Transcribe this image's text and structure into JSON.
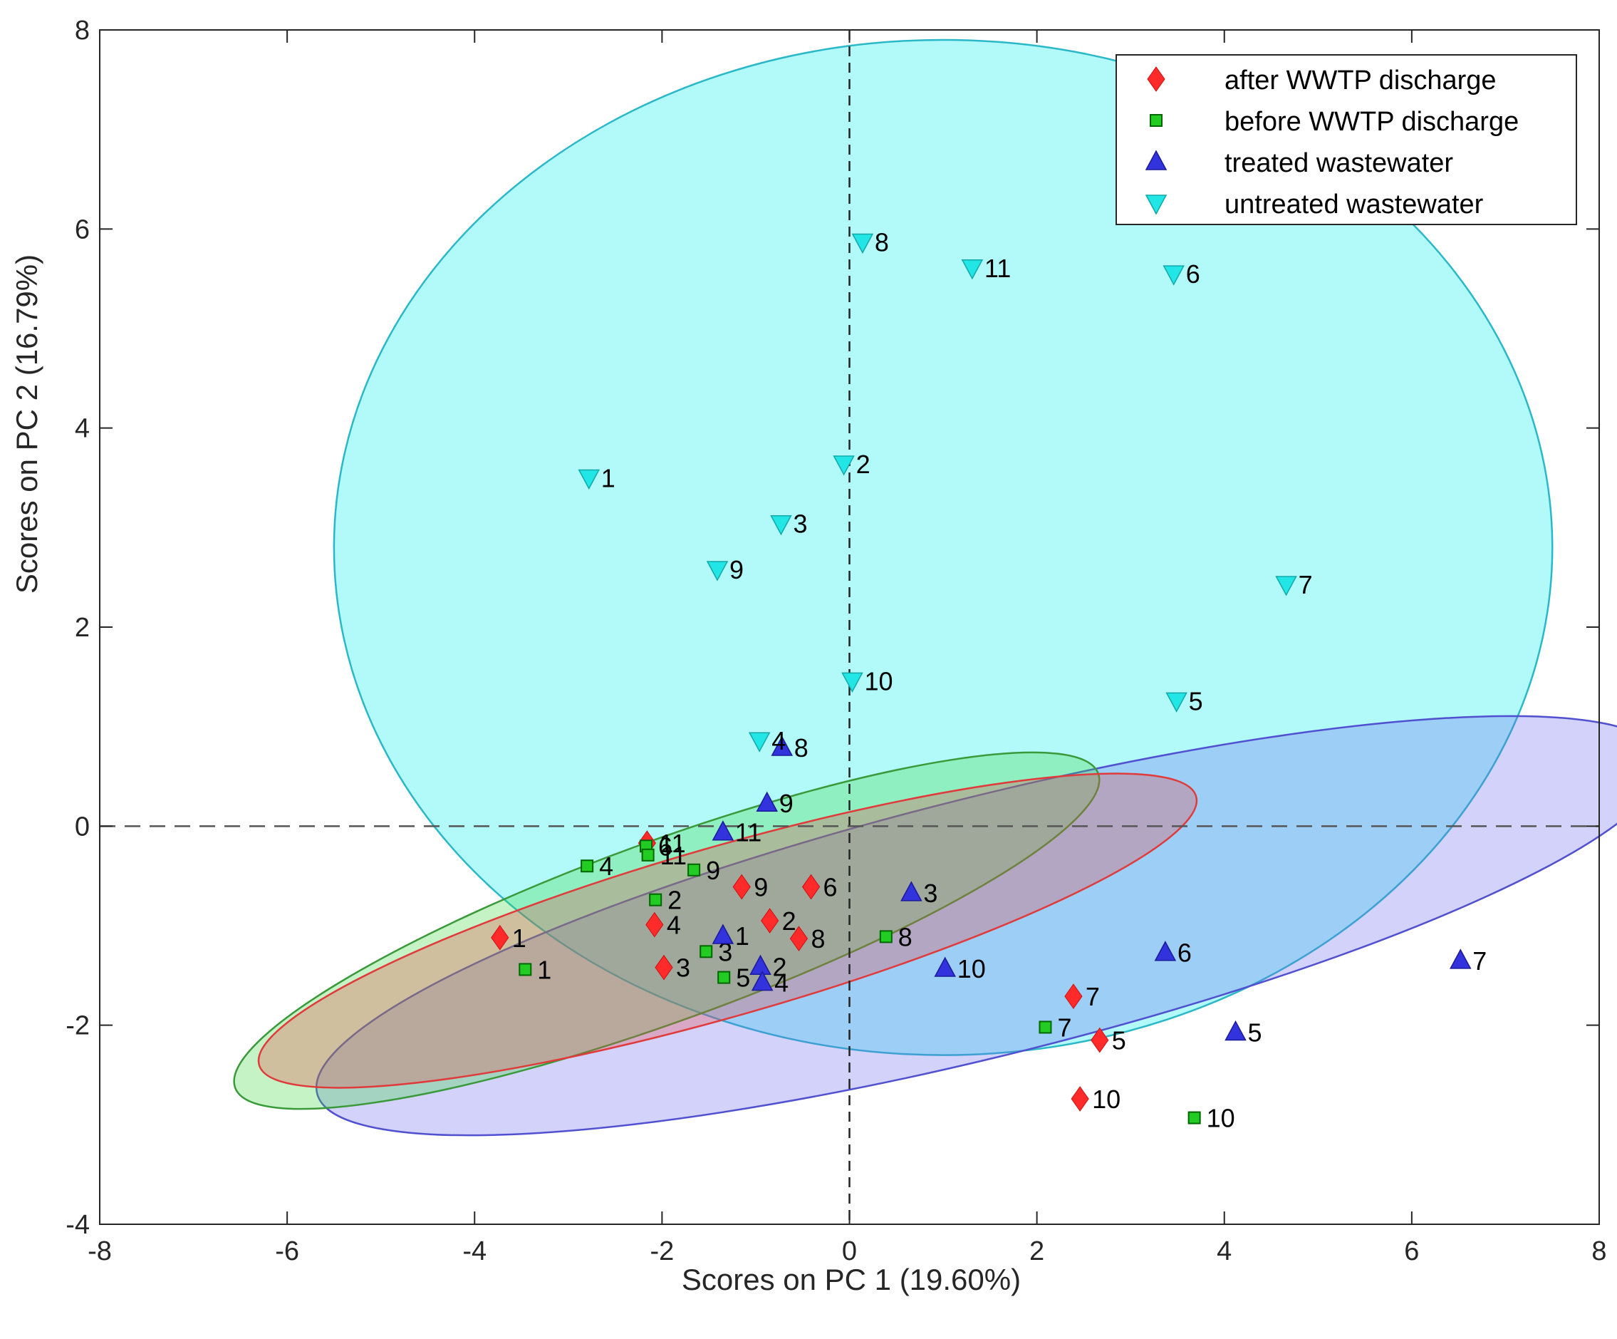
{
  "chart_data": {
    "type": "scatter",
    "title": "",
    "xlabel": "Scores on PC 1 (19.60%)",
    "ylabel": "Scores on PC 2 (16.79%)",
    "xlim": [
      -8,
      8
    ],
    "ylim": [
      -4,
      8
    ],
    "xticks": [
      "-8",
      "-6",
      "-4",
      "-2",
      "0",
      "2",
      "4",
      "6",
      "8"
    ],
    "yticks": [
      "-4",
      "-2",
      "0",
      "2",
      "4",
      "6",
      "8"
    ],
    "reference_lines": {
      "x": 0,
      "y": 0
    },
    "legend_position": "top-right",
    "series": [
      {
        "name": "after WWTP discharge",
        "marker": "diamond",
        "color": "#ff2a2a",
        "points": [
          {
            "label": "1",
            "x": -3.73,
            "y": -1.12
          },
          {
            "label": "2",
            "x": -0.85,
            "y": -0.95
          },
          {
            "label": "3",
            "x": -1.98,
            "y": -1.42
          },
          {
            "label": "4",
            "x": -2.08,
            "y": -0.99
          },
          {
            "label": "5",
            "x": 2.67,
            "y": -2.15
          },
          {
            "label": "6",
            "x": -0.41,
            "y": -0.61
          },
          {
            "label": "7",
            "x": 2.39,
            "y": -1.71
          },
          {
            "label": "8",
            "x": -0.54,
            "y": -1.13
          },
          {
            "label": "9",
            "x": -1.15,
            "y": -0.61
          },
          {
            "label": "10",
            "x": 2.46,
            "y": -2.74
          },
          {
            "label": "11",
            "x": -2.16,
            "y": -0.17
          }
        ]
      },
      {
        "name": "before WWTP discharge",
        "marker": "square",
        "color": "#22cc22",
        "points": [
          {
            "label": "1",
            "x": -3.46,
            "y": -1.44
          },
          {
            "label": "2",
            "x": -2.07,
            "y": -0.74
          },
          {
            "label": "3",
            "x": -1.53,
            "y": -1.26
          },
          {
            "label": "4",
            "x": -2.8,
            "y": -0.4
          },
          {
            "label": "5",
            "x": -1.34,
            "y": -1.52
          },
          {
            "label": "6",
            "x": -2.17,
            "y": -0.2
          },
          {
            "label": "7",
            "x": 2.09,
            "y": -2.02
          },
          {
            "label": "8",
            "x": 0.39,
            "y": -1.11
          },
          {
            "label": "9",
            "x": -1.66,
            "y": -0.44
          },
          {
            "label": "10",
            "x": 3.68,
            "y": -2.93
          },
          {
            "label": "11",
            "x": -2.15,
            "y": -0.29
          }
        ]
      },
      {
        "name": "treated wastewater",
        "marker": "triangle-up",
        "color": "#3333dd",
        "points": [
          {
            "label": "1",
            "x": -1.35,
            "y": -1.1
          },
          {
            "label": "2",
            "x": -0.95,
            "y": -1.41
          },
          {
            "label": "3",
            "x": 0.66,
            "y": -0.67
          },
          {
            "label": "4",
            "x": -0.93,
            "y": -1.57
          },
          {
            "label": "5",
            "x": 4.12,
            "y": -2.07
          },
          {
            "label": "6",
            "x": 3.37,
            "y": -1.27
          },
          {
            "label": "7",
            "x": 6.52,
            "y": -1.35
          },
          {
            "label": "8",
            "x": -0.72,
            "y": 0.79
          },
          {
            "label": "9",
            "x": -0.88,
            "y": 0.23
          },
          {
            "label": "10",
            "x": 1.02,
            "y": -1.43
          },
          {
            "label": "11",
            "x": -1.35,
            "y": -0.06
          }
        ]
      },
      {
        "name": "untreated wastewater",
        "marker": "triangle-down",
        "color": "#22e5e5",
        "points": [
          {
            "label": "1",
            "x": -2.78,
            "y": 3.5
          },
          {
            "label": "2",
            "x": -0.06,
            "y": 3.64
          },
          {
            "label": "3",
            "x": -0.73,
            "y": 3.04
          },
          {
            "label": "4",
            "x": -0.96,
            "y": 0.86
          },
          {
            "label": "5",
            "x": 3.49,
            "y": 1.26
          },
          {
            "label": "6",
            "x": 3.46,
            "y": 5.55
          },
          {
            "label": "7",
            "x": 4.66,
            "y": 2.43
          },
          {
            "label": "8",
            "x": 0.14,
            "y": 5.87
          },
          {
            "label": "9",
            "x": -1.41,
            "y": 2.58
          },
          {
            "label": "10",
            "x": 0.03,
            "y": 1.46
          },
          {
            "label": "11",
            "x": 1.31,
            "y": 5.61
          }
        ]
      }
    ],
    "confidence_ellipses": [
      {
        "group": "untreated wastewater",
        "cx": 1.0,
        "cy": 2.8,
        "rx": 6.5,
        "ry": 5.1,
        "angle_deg": 0,
        "fill": "#00f0f0",
        "stroke": "#2ab8c8"
      },
      {
        "group": "treated wastewater",
        "cx": 1.5,
        "cy": -1.0,
        "rx": 7.4,
        "ry": 1.3,
        "angle_deg": -14,
        "fill": "#6a6af0",
        "stroke": "#5050d0"
      },
      {
        "group": "before WWTP discharge",
        "cx": -1.95,
        "cy": -1.05,
        "rx": 4.9,
        "ry": 0.9,
        "angle_deg": -20,
        "fill": "#3fd83f",
        "stroke": "#3a9a3a"
      },
      {
        "group": "after WWTP discharge",
        "cx": -1.3,
        "cy": -1.05,
        "rx": 5.2,
        "ry": 0.85,
        "angle_deg": -16,
        "fill": "#e84848",
        "stroke": "#e03a3a"
      }
    ]
  }
}
